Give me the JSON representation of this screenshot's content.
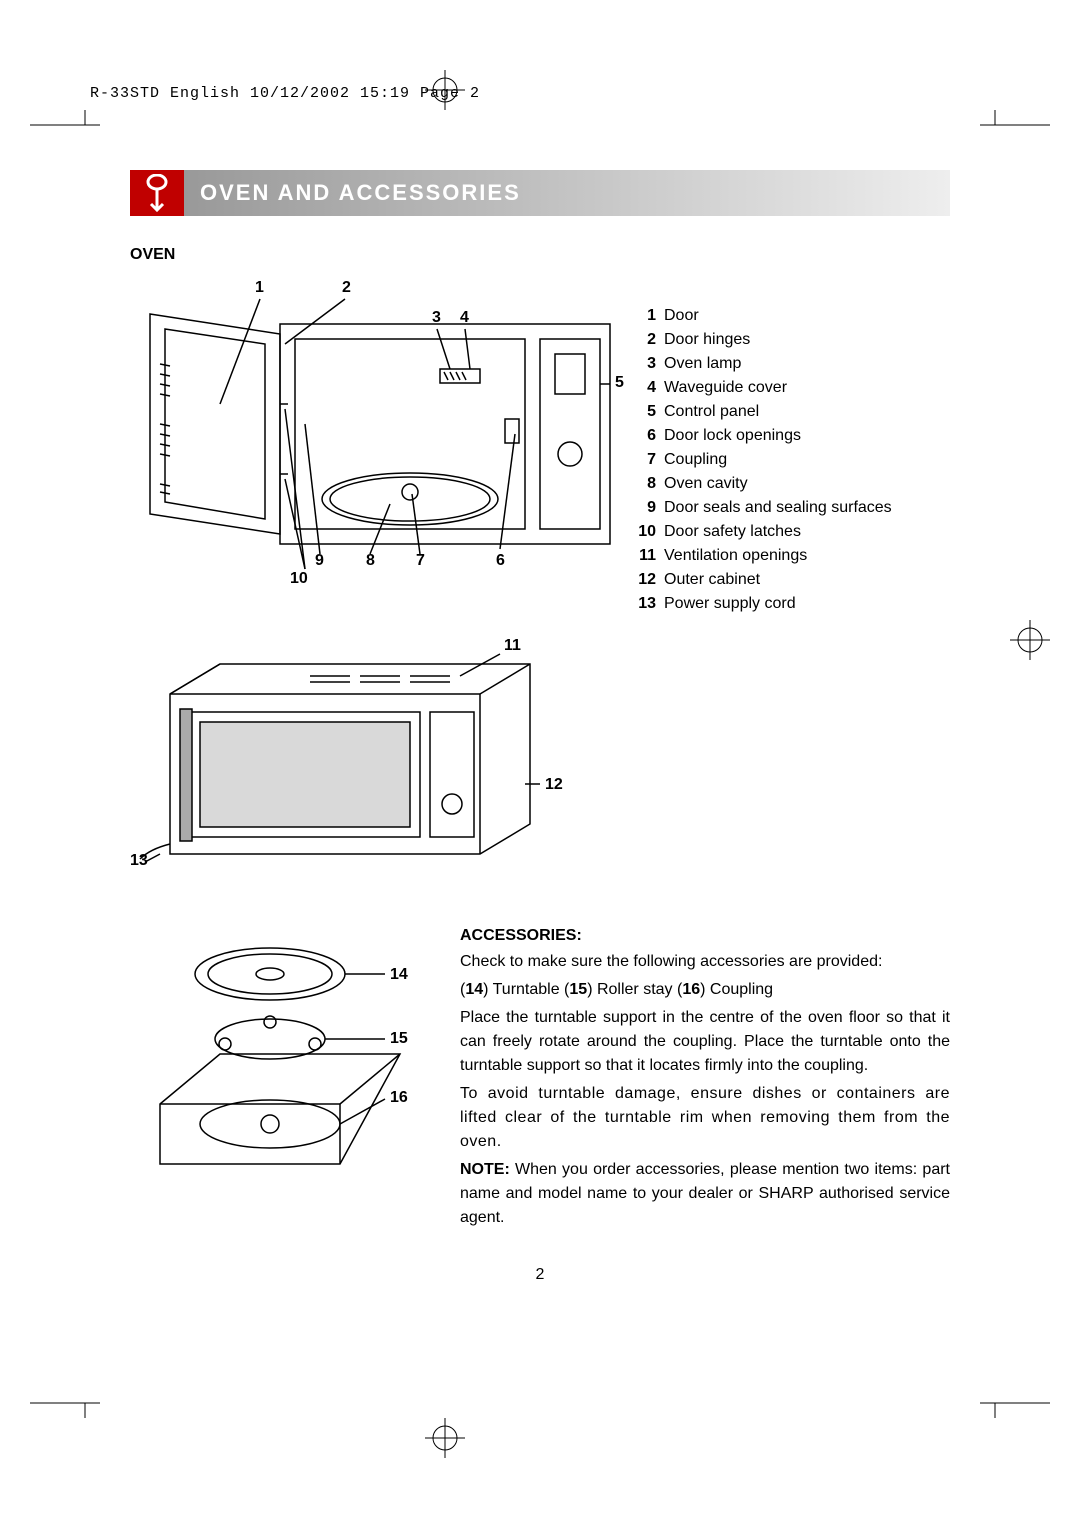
{
  "header": "R-33STD English  10/12/2002  15:19  Page 2",
  "title": "OVEN AND ACCESSORIES",
  "section_oven": "OVEN",
  "oven_callouts": {
    "n1": "1",
    "n2": "2",
    "n3": "3",
    "n4": "4",
    "n5": "5",
    "n6": "6",
    "n7": "7",
    "n8": "8",
    "n9": "9",
    "n10": "10",
    "n11": "11",
    "n12": "12",
    "n13": "13",
    "n14": "14",
    "n15": "15",
    "n16": "16"
  },
  "legend": [
    {
      "n": "1",
      "t": "Door"
    },
    {
      "n": "2",
      "t": "Door hinges"
    },
    {
      "n": "3",
      "t": "Oven lamp"
    },
    {
      "n": "4",
      "t": "Waveguide cover"
    },
    {
      "n": "5",
      "t": "Control panel"
    },
    {
      "n": "6",
      "t": "Door lock openings"
    },
    {
      "n": "7",
      "t": "Coupling"
    },
    {
      "n": "8",
      "t": "Oven cavity"
    },
    {
      "n": "9",
      "t": "Door seals and sealing surfaces"
    },
    {
      "n": "10",
      "t": "Door safety latches"
    },
    {
      "n": "11",
      "t": "Ventilation openings"
    },
    {
      "n": "12",
      "t": "Outer cabinet"
    },
    {
      "n": "13",
      "t": "Power supply cord"
    }
  ],
  "accessories": {
    "heading": "ACCESSORIES:",
    "p1": "Check to make sure the following accessories are provided:",
    "p2_pre": "(",
    "p2_14": "14",
    "p2_a": ") Turntable  (",
    "p2_15": "15",
    "p2_b": ") Roller stay (",
    "p2_16": "16",
    "p2_c": ") Coupling",
    "p3": "Place the turntable support in the centre of the oven floor so that it can freely rotate around the coupling. Place the turntable onto the turntable support so that it locates firmly into the coupling.",
    "p4": "To avoid turntable damage, ensure dishes or containers are lifted clear of the turntable rim when removing them from the oven.",
    "p5_label": "NOTE:",
    "p5": " When you order accessories, please mention two items: part name and model name to your dealer or SHARP authorised service agent."
  },
  "page_number": "2"
}
